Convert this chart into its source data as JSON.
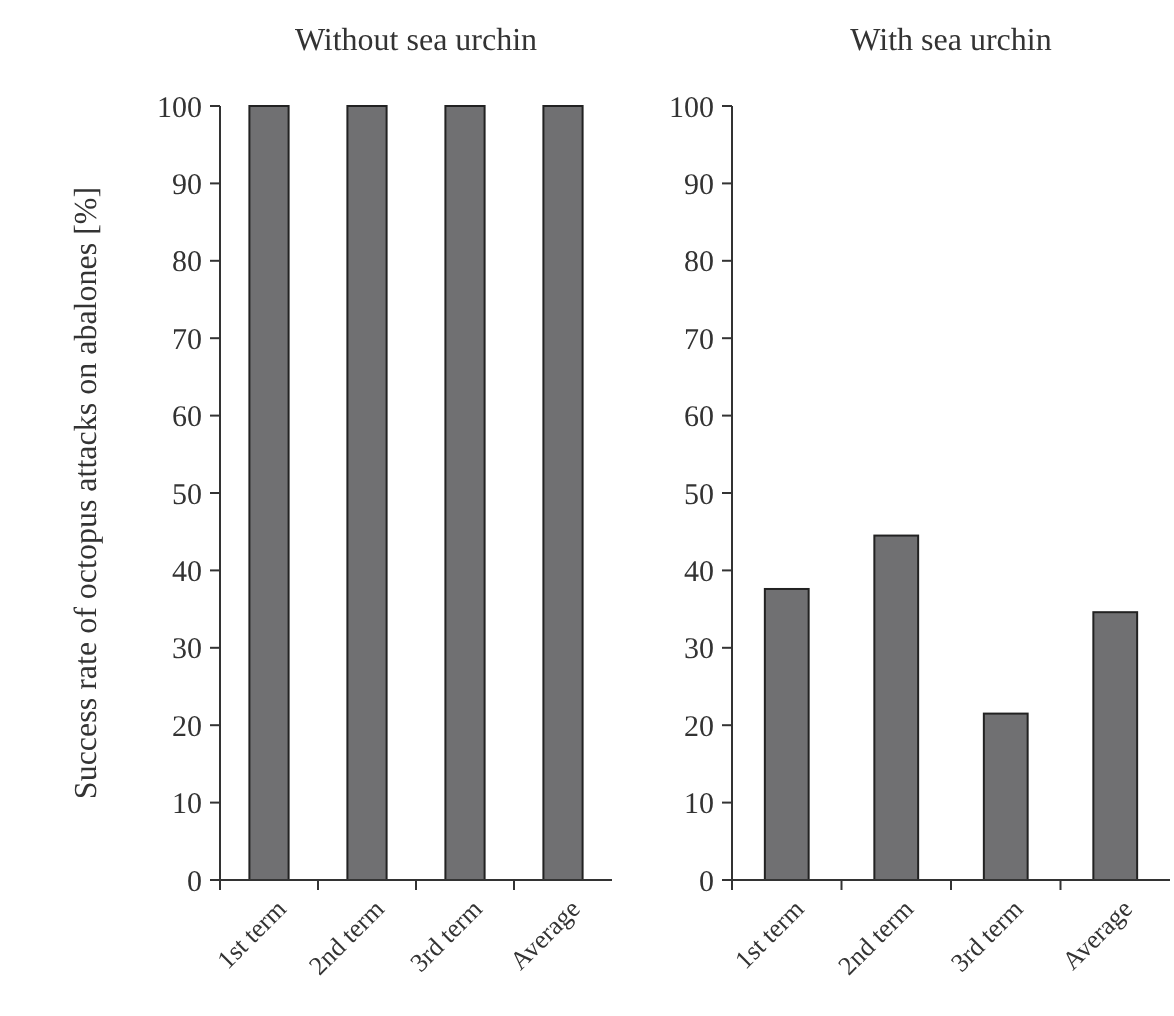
{
  "chart_data": [
    {
      "type": "bar",
      "title": "Without sea urchin",
      "ylabel": "Success rate of octopus attacks on abalones [%]",
      "categories": [
        "1st term",
        "2nd term",
        "3rd term",
        "Average"
      ],
      "values": [
        100,
        100,
        100,
        100
      ],
      "color": "#707072",
      "ylim": [
        0,
        100
      ],
      "yticks": [
        0,
        10,
        20,
        30,
        40,
        50,
        60,
        70,
        80,
        90,
        100
      ]
    },
    {
      "type": "bar",
      "title": "With sea urchin",
      "categories": [
        "1st term",
        "2nd term",
        "3rd term",
        "Average"
      ],
      "values": [
        37.6,
        44.5,
        21.5,
        34.6
      ],
      "color": "#707072",
      "ylim": [
        0,
        100
      ],
      "yticks": [
        0,
        10,
        20,
        30,
        40,
        50,
        60,
        70,
        80,
        90,
        100
      ]
    }
  ]
}
